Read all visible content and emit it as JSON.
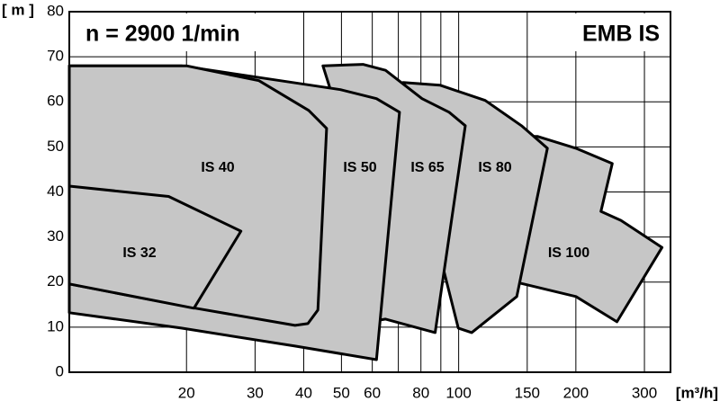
{
  "chart_data": {
    "type": "region",
    "title": "n = 2900 1/min",
    "subtitle": "EMB IS",
    "y_label": "[ m ]",
    "x_label": "[m³/h]",
    "xscale": "log",
    "xlim": [
      10,
      350
    ],
    "ylim": [
      0,
      80
    ],
    "xticks": [
      20,
      30,
      40,
      50,
      60,
      80,
      100,
      150,
      200,
      300
    ],
    "xgrid": [
      20,
      30,
      40,
      50,
      60,
      70,
      80,
      90,
      100,
      150,
      200,
      300
    ],
    "yticks": [
      0,
      10,
      20,
      30,
      40,
      50,
      60,
      70,
      80
    ],
    "grid": true,
    "fill": "#c6c6c6",
    "edge": "#000000",
    "series": [
      {
        "name": "IS 100",
        "x": [
          130,
          159.6,
          200,
          248,
          232,
          261,
          333,
          255,
          200,
          143.5,
          130
        ],
        "y": [
          52.3,
          52.3,
          49.7,
          46.3,
          35.7,
          33.7,
          27.7,
          11.2,
          16.8,
          19.8,
          19.8
        ]
      },
      {
        "name": "IS 80",
        "x": [
          72,
          89.5,
          117,
          145,
          169,
          141,
          108,
          99.8,
          80
        ],
        "y": [
          64.3,
          63.7,
          60.3,
          54.7,
          49.7,
          16.8,
          8.8,
          9.8,
          42.7
        ]
      },
      {
        "name": "IS 65",
        "x": [
          44.8,
          56.8,
          64.9,
          80.5,
          94.5,
          104,
          87,
          64.9,
          55.4,
          55.4
        ],
        "y": [
          68,
          68.3,
          67,
          60.7,
          57.7,
          54.7,
          8.8,
          11.8,
          10.8,
          42.7
        ]
      },
      {
        "name": "IS 50",
        "x": [
          10,
          19.4,
          32.4,
          49.7,
          61.5,
          70.5,
          61.5,
          38,
          19.4,
          10
        ],
        "y": [
          68,
          68,
          65.1,
          62.7,
          60.7,
          57.7,
          2.8,
          5.8,
          9.8,
          13.2
        ]
      },
      {
        "name": "IS 40",
        "x": [
          10,
          20,
          30.7,
          41.2,
          45.8,
          43.5,
          41,
          38,
          21.1,
          10
        ],
        "y": [
          68,
          68,
          64.7,
          58.1,
          54.1,
          13.8,
          10.8,
          10.4,
          14.2,
          19.6
        ]
      },
      {
        "name": "IS 32",
        "x": [
          10,
          18,
          27.6,
          20.9,
          10
        ],
        "y": [
          41.3,
          39,
          31.3,
          14.2,
          19.6
        ]
      }
    ]
  }
}
